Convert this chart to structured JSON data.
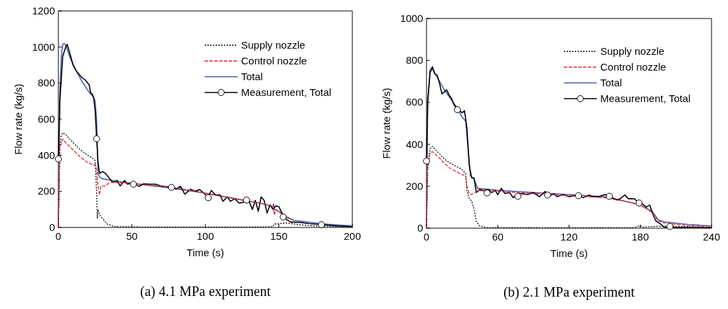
{
  "chart_data": [
    {
      "type": "line",
      "title": "(a) 4.1 MPa experiment",
      "xlabel": "Time (s)",
      "ylabel": "Flow rate (kg/s)",
      "xlim": [
        0,
        200
      ],
      "xticks": [
        0,
        50,
        100,
        150,
        200
      ],
      "ylim": [
        0,
        1200
      ],
      "yticks": [
        0,
        200,
        400,
        600,
        800,
        1000,
        1200
      ],
      "legend": "top right",
      "grid": false,
      "series": [
        {
          "name": "Supply nozzle",
          "color": "#000000",
          "line_style": "dotted",
          "x": [
            0,
            0.5,
            1,
            2,
            3,
            5,
            10,
            15,
            20,
            24,
            25,
            26,
            26.5,
            27,
            28,
            30,
            33,
            38,
            60,
            100,
            140,
            146,
            147,
            150,
            155,
            160,
            170,
            200
          ],
          "values": [
            0,
            200,
            450,
            510,
            525,
            515,
            470,
            430,
            400,
            380,
            370,
            200,
            50,
            100,
            70,
            50,
            20,
            5,
            2,
            2,
            3,
            5,
            20,
            20,
            25,
            20,
            10,
            3
          ]
        },
        {
          "name": "Control nozzle",
          "color": "#e8232a",
          "line_style": "dashed",
          "x": [
            0,
            0.5,
            1,
            3,
            5,
            10,
            15,
            20,
            24,
            25,
            26,
            27,
            28,
            29,
            32,
            35,
            50,
            80,
            100,
            120,
            140,
            146,
            147,
            148,
            155,
            160
          ],
          "values": [
            0,
            200,
            440,
            490,
            470,
            430,
            390,
            360,
            345,
            350,
            320,
            230,
            180,
            230,
            230,
            250,
            245,
            220,
            190,
            160,
            130,
            115,
            70,
            100,
            55,
            40
          ]
        },
        {
          "name": "Total",
          "color": "#4a5fb0",
          "line_style": "solid",
          "x": [
            0,
            0.5,
            1,
            2,
            3,
            4,
            5,
            8,
            12,
            16,
            20,
            24,
            25,
            26,
            26.5,
            27,
            28,
            30,
            40,
            60,
            80,
            100,
            120,
            140,
            146,
            146.5,
            147,
            150,
            155,
            160,
            180,
            200
          ],
          "values": [
            0,
            400,
            750,
            950,
            1015,
            1020,
            1010,
            940,
            870,
            810,
            760,
            720,
            700,
            600,
            450,
            300,
            280,
            270,
            255,
            235,
            215,
            190,
            160,
            130,
            115,
            130,
            100,
            90,
            60,
            40,
            20,
            8
          ]
        },
        {
          "name": "Measurement, Total",
          "color": "#000000",
          "line_style": "solid",
          "x": [
            0,
            1,
            3,
            5,
            6,
            8,
            10,
            12,
            13,
            15,
            16,
            18,
            19,
            21,
            22,
            23,
            24,
            25,
            26,
            27,
            28,
            30,
            32,
            35,
            37,
            40,
            42,
            45,
            47,
            50,
            53,
            55,
            58,
            62,
            66,
            70,
            75,
            77,
            80,
            83,
            86,
            90,
            93,
            96,
            99,
            102,
            104,
            107,
            110,
            112,
            115,
            117,
            120,
            123,
            126,
            128,
            130,
            132,
            134,
            136,
            138,
            140,
            142,
            144,
            146,
            148,
            150,
            153,
            155,
            158,
            165,
            170,
            180,
            190,
            200
          ],
          "values": [
            380,
            700,
            950,
            1000,
            1015,
            960,
            900,
            870,
            860,
            840,
            830,
            820,
            810,
            790,
            745,
            740,
            720,
            650,
            500,
            360,
            300,
            310,
            300,
            270,
            250,
            260,
            230,
            260,
            240,
            245,
            235,
            228,
            242,
            240,
            240,
            230,
            225,
            235,
            212,
            228,
            185,
            212,
            200,
            210,
            190,
            165,
            205,
            180,
            180,
            145,
            170,
            145,
            160,
            135,
            140,
            155,
            140,
            100,
            150,
            90,
            170,
            150,
            80,
            125,
            100,
            120,
            115,
            65,
            45,
            30,
            28,
            22,
            15,
            8,
            5
          ]
        },
        {
          "type": "scatter",
          "color": "#000000",
          "marker": "circle",
          "x": [
            0,
            26,
            51,
            77,
            102,
            128,
            153,
            179
          ],
          "values": [
            380,
            492,
            240,
            222,
            165,
            152,
            58,
            15
          ]
        }
      ]
    },
    {
      "type": "line",
      "title": "(b) 2.1 MPa experiment",
      "xlabel": "Time (s)",
      "ylabel": "Flow rate (kg/s)",
      "xlim": [
        0,
        240
      ],
      "xticks": [
        0,
        60,
        120,
        180,
        240
      ],
      "ylim": [
        0,
        1000
      ],
      "yticks": [
        0,
        200,
        400,
        600,
        800,
        1000
      ],
      "legend": "top right",
      "grid": false,
      "series": [
        {
          "name": "Supply nozzle",
          "color": "#000000",
          "line_style": "dotted",
          "x": [
            0,
            1,
            3,
            5,
            10,
            15,
            20,
            25,
            30,
            33,
            34,
            36,
            38,
            40,
            42,
            45,
            50,
            120,
            175,
            180,
            182,
            190,
            200,
            240
          ],
          "values": [
            0,
            300,
            380,
            390,
            360,
            330,
            310,
            295,
            280,
            260,
            180,
            140,
            130,
            90,
            30,
            10,
            3,
            2,
            3,
            12,
            5,
            8,
            10,
            5
          ]
        },
        {
          "name": "Control nozzle",
          "color": "#e8232a",
          "line_style": "dashed",
          "x": [
            0,
            1,
            3,
            5,
            10,
            15,
            20,
            25,
            30,
            33,
            34,
            36,
            38,
            43,
            60,
            90,
            120,
            150,
            170,
            180,
            190,
            195,
            200,
            220,
            240
          ],
          "values": [
            0,
            280,
            360,
            365,
            340,
            310,
            285,
            270,
            255,
            250,
            200,
            165,
            160,
            180,
            175,
            165,
            155,
            145,
            125,
            110,
            75,
            35,
            25,
            12,
            5
          ]
        },
        {
          "name": "Total",
          "color": "#4a5fb0",
          "line_style": "solid",
          "x": [
            0,
            1,
            3,
            5,
            10,
            15,
            20,
            25,
            30,
            33,
            35,
            37,
            40,
            43,
            60,
            90,
            120,
            150,
            170,
            180,
            190,
            195,
            200,
            220,
            240
          ],
          "values": [
            0,
            600,
            740,
            760,
            710,
            660,
            620,
            580,
            530,
            510,
            380,
            250,
            235,
            190,
            180,
            170,
            160,
            150,
            125,
            110,
            80,
            40,
            30,
            18,
            10
          ]
        },
        {
          "name": "Measurement, Total",
          "color": "#000000",
          "line_style": "solid",
          "x": [
            0,
            1,
            3,
            5,
            7,
            9,
            11,
            13,
            15,
            17,
            19,
            21,
            23,
            25,
            28,
            30,
            32,
            34,
            36,
            38,
            40,
            42,
            45,
            48,
            52,
            55,
            58,
            60,
            63,
            66,
            70,
            73,
            76,
            80,
            85,
            90,
            95,
            100,
            103,
            107,
            110,
            115,
            120,
            125,
            128,
            132,
            137,
            140,
            145,
            150,
            155,
            160,
            163,
            167,
            170,
            175,
            178,
            182,
            185,
            188,
            190,
            193,
            197,
            200,
            205,
            220,
            240
          ],
          "values": [
            320,
            600,
            750,
            770,
            735,
            730,
            690,
            640,
            650,
            660,
            635,
            620,
            590,
            575,
            560,
            550,
            560,
            480,
            300,
            240,
            240,
            170,
            185,
            178,
            185,
            170,
            180,
            160,
            190,
            165,
            170,
            145,
            160,
            165,
            160,
            170,
            150,
            175,
            150,
            165,
            150,
            160,
            150,
            155,
            155,
            145,
            158,
            150,
            150,
            160,
            150,
            135,
            140,
            158,
            140,
            140,
            125,
            115,
            100,
            110,
            75,
            35,
            20,
            5,
            3,
            3,
            2
          ]
        },
        {
          "type": "scatter",
          "color": "#000000",
          "marker": "circle",
          "x": [
            0,
            26,
            51,
            77,
            102,
            128,
            154,
            179,
            205
          ],
          "values": [
            320,
            565,
            168,
            152,
            158,
            155,
            152,
            120,
            8
          ]
        }
      ]
    }
  ]
}
